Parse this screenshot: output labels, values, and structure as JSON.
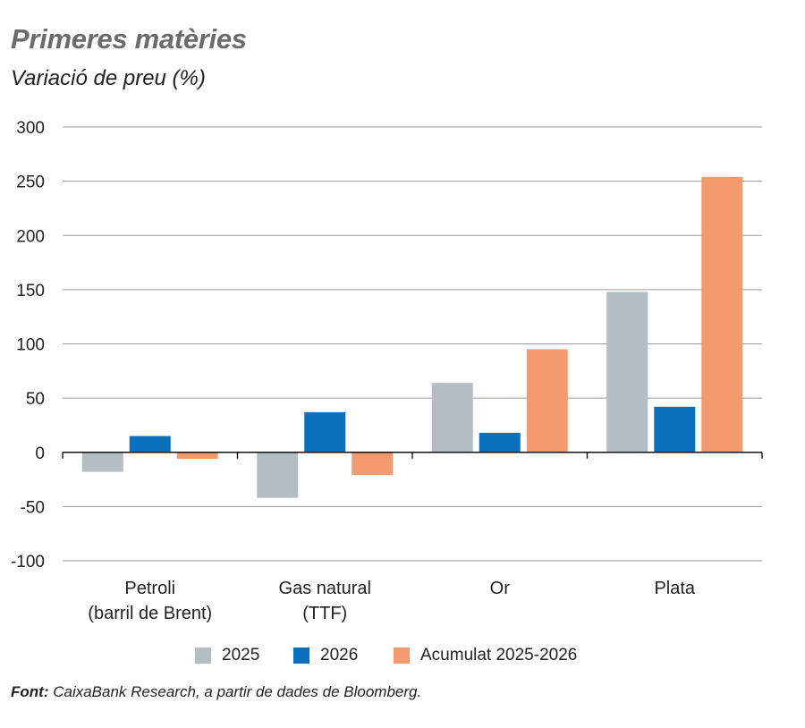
{
  "header": {
    "title": "Primeres matèries",
    "subtitle": "Variació de preu (%)"
  },
  "source": {
    "label": "Font:",
    "text": " CaixaBank Research, a partir de dades de Bloomberg."
  },
  "chart_data": {
    "type": "bar",
    "categories": [
      [
        "Petroli",
        "(barril de Brent)"
      ],
      [
        "Gas natural",
        "(TTF)"
      ],
      [
        "Or"
      ],
      [
        "Plata"
      ]
    ],
    "series": [
      {
        "name": "2025",
        "color": "#b2bec3",
        "values": [
          -18,
          -42,
          64,
          148
        ]
      },
      {
        "name": "2026",
        "color": "#0a6fbd",
        "values": [
          15,
          37,
          18,
          42
        ]
      },
      {
        "name": "Acumulat 2025-2026",
        "color": "#f29a6e",
        "values": [
          -6,
          -21,
          95,
          254
        ]
      }
    ],
    "ylim": [
      -100,
      300
    ],
    "yticks": [
      300,
      250,
      200,
      150,
      100,
      50,
      0,
      -50,
      -100
    ],
    "grid": true,
    "legend": "bottom"
  }
}
